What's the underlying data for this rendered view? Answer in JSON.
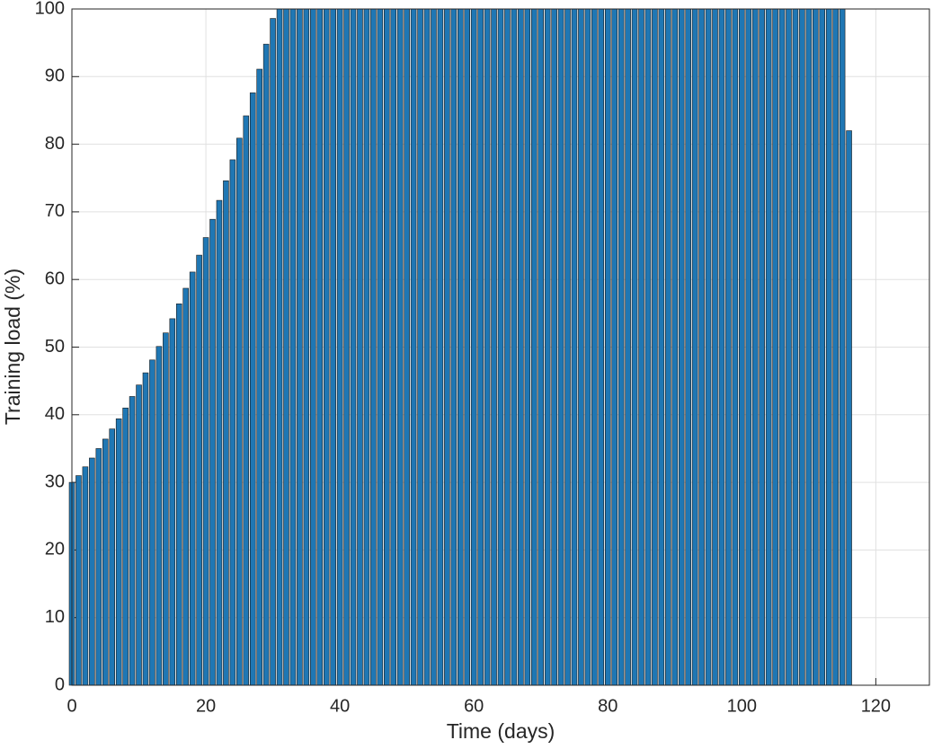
{
  "chart_data": {
    "type": "bar",
    "xlabel": "Time (days)",
    "ylabel": "Training load (%)",
    "x": [
      0,
      1,
      2,
      3,
      4,
      5,
      6,
      7,
      8,
      9,
      10,
      11,
      12,
      13,
      14,
      15,
      16,
      17,
      18,
      19,
      20,
      21,
      22,
      23,
      24,
      25,
      26,
      27,
      28,
      29,
      30,
      31,
      32,
      33,
      34,
      35,
      36,
      37,
      38,
      39,
      40,
      41,
      42,
      43,
      44,
      45,
      46,
      47,
      48,
      49,
      50,
      51,
      52,
      53,
      54,
      55,
      56,
      57,
      58,
      59,
      60,
      61,
      62,
      63,
      64,
      65,
      66,
      67,
      68,
      69,
      70,
      71,
      72,
      73,
      74,
      75,
      76,
      77,
      78,
      79,
      80,
      81,
      82,
      83,
      84,
      85,
      86,
      87,
      88,
      89,
      90,
      91,
      92,
      93,
      94,
      95,
      96,
      97,
      98,
      99,
      100,
      101,
      102,
      103,
      104,
      105,
      106,
      107,
      108,
      109,
      110,
      111,
      112,
      113,
      114,
      115,
      116
    ],
    "values": [
      30,
      31,
      32.3,
      33.6,
      35,
      36.4,
      37.9,
      39.4,
      41,
      42.7,
      44.4,
      46.2,
      48.1,
      50.1,
      52.1,
      54.2,
      56.4,
      58.7,
      61.1,
      63.6,
      66.2,
      68.9,
      71.7,
      74.6,
      77.7,
      80.9,
      84.2,
      87.6,
      91.1,
      94.8,
      98.6,
      100,
      100,
      100,
      100,
      100,
      100,
      100,
      100,
      100,
      100,
      100,
      100,
      100,
      100,
      100,
      100,
      100,
      100,
      100,
      100,
      100,
      100,
      100,
      100,
      100,
      100,
      100,
      100,
      100,
      100,
      100,
      100,
      100,
      100,
      100,
      100,
      100,
      100,
      100,
      100,
      100,
      100,
      100,
      100,
      100,
      100,
      100,
      100,
      100,
      100,
      100,
      100,
      100,
      100,
      100,
      100,
      100,
      100,
      100,
      100,
      100,
      100,
      100,
      100,
      100,
      100,
      100,
      100,
      100,
      100,
      100,
      100,
      100,
      100,
      100,
      100,
      100,
      100,
      100,
      100,
      100,
      100,
      100,
      100,
      100,
      82
    ],
    "color": "#1f77b4",
    "xlim": [
      0,
      128
    ],
    "xticks": [
      0,
      20,
      40,
      60,
      80,
      100,
      120
    ],
    "ylim": [
      0,
      100
    ],
    "yticks": [
      0,
      10,
      20,
      30,
      40,
      50,
      60,
      70,
      80,
      90,
      100
    ],
    "grid": true
  }
}
